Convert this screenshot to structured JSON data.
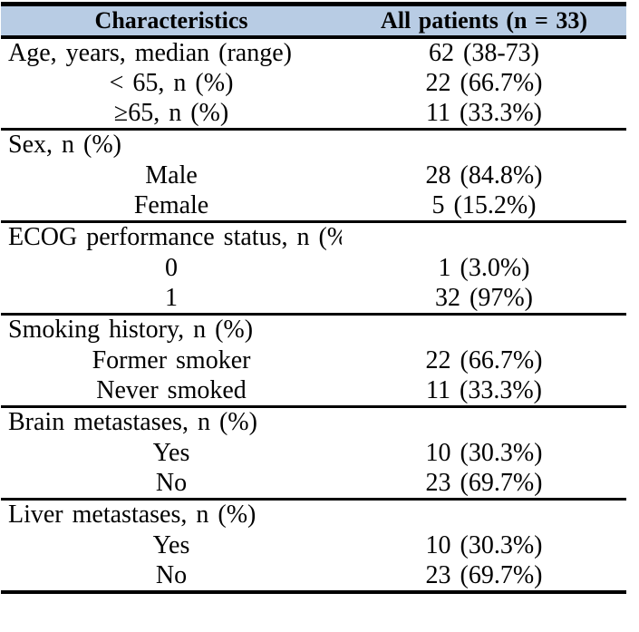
{
  "colors": {
    "header_bg": "#b8cce4",
    "border": "#000000",
    "text": "#000000",
    "page_bg": "#ffffff"
  },
  "table": {
    "header": {
      "characteristics": "Characteristics",
      "all_patients": "All patients (n = 33)"
    },
    "sections": [
      {
        "name": "age",
        "rows": [
          {
            "label": "Age, years, median (range)",
            "value": "62 (38-73)"
          },
          {
            "label": "< 65, n (%)",
            "value": "22 (66.7%)"
          },
          {
            "label": "≥65, n (%)",
            "value": "11 (33.3%)"
          }
        ]
      },
      {
        "name": "sex",
        "rows": [
          {
            "label": "Sex, n (%)",
            "value": ""
          },
          {
            "label": "Male",
            "value": "28 (84.8%)"
          },
          {
            "label": "Female",
            "value": "5 (15.2%)"
          }
        ]
      },
      {
        "name": "ecog",
        "rows": [
          {
            "label": "ECOG performance status, n (%)",
            "value": ""
          },
          {
            "label": "0",
            "value": "1 (3.0%)"
          },
          {
            "label": "1",
            "value": "32 (97%)"
          }
        ]
      },
      {
        "name": "smoking",
        "rows": [
          {
            "label": "Smoking history, n (%)",
            "value": ""
          },
          {
            "label": "Former smoker",
            "value": "22 (66.7%)"
          },
          {
            "label": "Never smoked",
            "value": "11 (33.3%)"
          }
        ]
      },
      {
        "name": "brain-metastases",
        "rows": [
          {
            "label": "Brain metastases, n (%)",
            "value": ""
          },
          {
            "label": "Yes",
            "value": "10 (30.3%)"
          },
          {
            "label": "No",
            "value": "23 (69.7%)"
          }
        ]
      },
      {
        "name": "liver-metastases",
        "rows": [
          {
            "label": "Liver metastases, n (%)",
            "value": ""
          },
          {
            "label": "Yes",
            "value": "10 (30.3%)"
          },
          {
            "label": "No",
            "value": "23 (69.7%)"
          }
        ]
      }
    ]
  }
}
